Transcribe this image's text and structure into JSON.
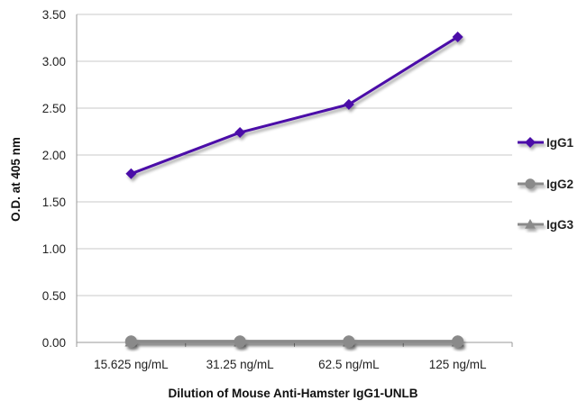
{
  "chart_data": {
    "type": "line",
    "title": "",
    "xlabel": "Dilution of Mouse Anti-Hamster IgG1-UNLB",
    "ylabel": "O.D. at 405 nm",
    "categories": [
      "15.625 ng/mL",
      "31.25 ng/mL",
      "62.5 ng/mL",
      "125 ng/mL"
    ],
    "ylim": [
      0,
      3.5
    ],
    "yticks": [
      "0.00",
      "0.50",
      "1.00",
      "1.50",
      "2.00",
      "2.50",
      "3.00",
      "3.50"
    ],
    "grid": true,
    "legend_position": "right",
    "series": [
      {
        "name": "IgG1",
        "values": [
          1.8,
          2.24,
          2.54,
          3.26
        ],
        "color": "#4b0fa8",
        "marker": "diamond"
      },
      {
        "name": "IgG2",
        "values": [
          0.01,
          0.01,
          0.01,
          0.01
        ],
        "color": "#8a8a8a",
        "marker": "circle"
      },
      {
        "name": "IgG3",
        "values": [
          0.01,
          0.01,
          0.01,
          0.01
        ],
        "color": "#8a8a8a",
        "marker": "triangle"
      }
    ]
  }
}
